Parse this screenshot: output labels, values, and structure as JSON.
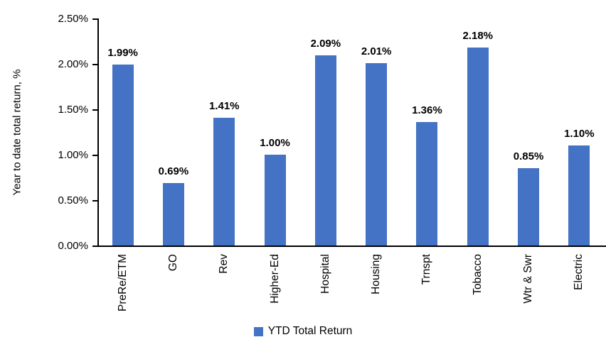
{
  "chart_data": {
    "type": "bar",
    "title": "",
    "ylabel": "Year to date total return, %",
    "xlabel": "",
    "ylim": [
      0,
      2.5
    ],
    "ytick_step": 0.5,
    "yticks": [
      "0.00%",
      "0.50%",
      "1.00%",
      "1.50%",
      "2.00%",
      "2.50%"
    ],
    "categories": [
      "PreRe/ETM",
      "GO",
      "Rev",
      "Higher-Ed",
      "Hospital",
      "Housing",
      "Trnspt",
      "Tobacco",
      "Wtr & Swr",
      "Electric"
    ],
    "values": [
      1.99,
      0.69,
      1.41,
      1.0,
      2.09,
      2.01,
      1.36,
      2.18,
      0.85,
      1.1
    ],
    "value_labels": [
      "1.99%",
      "0.69%",
      "1.41%",
      "1.00%",
      "2.09%",
      "2.01%",
      "1.36%",
      "2.18%",
      "0.85%",
      "1.10%"
    ],
    "grid": false,
    "legend": {
      "label": "YTD Total Return",
      "position": "bottom"
    },
    "colors": {
      "bar": "#4472C4",
      "axis": "#000000",
      "text": "#000000"
    }
  }
}
